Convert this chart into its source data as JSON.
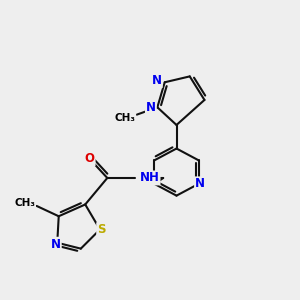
{
  "bg_color": "#eeeeee",
  "atom_color_N": "#0000ee",
  "atom_color_O": "#dd0000",
  "atom_color_S": "#bbaa00",
  "bond_color": "#111111",
  "bond_width": 1.5,
  "font_size_atom": 8.5,
  "font_size_methyl": 7.5,
  "xlim": [
    0,
    10
  ],
  "ylim": [
    0,
    10
  ]
}
